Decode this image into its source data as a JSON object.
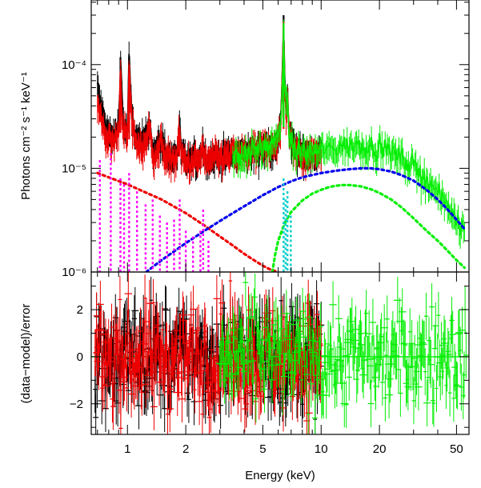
{
  "chart_data": [
    {
      "type": "line",
      "panel": "spectrum",
      "ylabel": "Photons cm⁻² s⁻¹ keV⁻¹",
      "xscale": "log",
      "yscale": "log",
      "xlim": [
        0.65,
        58
      ],
      "ylim": [
        1e-06,
        0.00042
      ],
      "ytick_values": [
        1e-06,
        1e-05,
        0.0001
      ],
      "ytick_labels": [
        "10⁻⁶",
        "10⁻⁵",
        "10⁻⁴"
      ],
      "series": [
        {
          "style": "data",
          "color": "#000000",
          "x": [
            0.7,
            0.75,
            0.8,
            0.85,
            0.9,
            0.92,
            0.95,
            1.0,
            1.02,
            1.05,
            1.1,
            1.15,
            1.2,
            1.3,
            1.35,
            1.4,
            1.5,
            1.6,
            1.7,
            1.8,
            1.85,
            1.9,
            2.0,
            2.1,
            2.2,
            2.3,
            2.4,
            2.45,
            2.5,
            2.7,
            3.0,
            3.3,
            3.6,
            4.0,
            4.5,
            5.0,
            5.5,
            6.0,
            6.2,
            6.4,
            6.5,
            6.6,
            6.7,
            6.8,
            7.0,
            7.5,
            8.0,
            9.0,
            10.0
          ],
          "y": [
            6e-05,
            3.2e-05,
            2.2e-05,
            2e-05,
            2.6e-05,
            0.000118,
            2.8e-05,
            2.2e-05,
            0.00012,
            3.5e-05,
            2e-05,
            1.9e-05,
            1.8e-05,
            2.8e-05,
            1.6e-05,
            1.5e-05,
            2e-05,
            1.4e-05,
            1.3e-05,
            1.4e-05,
            2.6e-05,
            1.4e-05,
            1.25e-05,
            1.2e-05,
            1.3e-05,
            1.25e-05,
            1.4e-05,
            1.9e-05,
            1.3e-05,
            1.3e-05,
            1.35e-05,
            1.4e-05,
            1.4e-05,
            1.45e-05,
            1.5e-05,
            1.6e-05,
            1.7e-05,
            1.9e-05,
            2.6e-05,
            0.0003,
            6e-05,
            3.5e-05,
            6e-05,
            2.5e-05,
            1.8e-05,
            1.5e-05,
            1.4e-05,
            1.45e-05,
            1.5e-05
          ]
        },
        {
          "style": "data",
          "color": "#ee0000",
          "x": [
            0.7,
            0.75,
            0.8,
            0.85,
            0.9,
            0.92,
            0.95,
            1.0,
            1.02,
            1.05,
            1.1,
            1.15,
            1.2,
            1.3,
            1.35,
            1.4,
            1.5,
            1.6,
            1.7,
            1.8,
            1.85,
            1.9,
            2.0,
            2.1,
            2.2,
            2.3,
            2.4,
            2.45,
            2.5,
            2.7,
            3.0,
            3.3,
            3.6,
            4.0,
            4.5,
            5.0,
            5.5,
            6.0,
            6.2,
            6.4,
            6.5,
            6.6,
            6.7,
            6.8,
            7.0,
            7.5,
            8.0,
            9.0,
            10.0
          ],
          "y": [
            4e-05,
            2.5e-05,
            1.9e-05,
            1.8e-05,
            2.2e-05,
            8.5e-05,
            2.4e-05,
            1.9e-05,
            0.0001,
            3e-05,
            1.8e-05,
            1.7e-05,
            1.6e-05,
            2.4e-05,
            1.5e-05,
            1.4e-05,
            1.8e-05,
            1.3e-05,
            1.25e-05,
            1.3e-05,
            2.3e-05,
            1.3e-05,
            1.2e-05,
            1.15e-05,
            1.2e-05,
            1.2e-05,
            1.3e-05,
            1.7e-05,
            1.2e-05,
            1.25e-05,
            1.3e-05,
            1.35e-05,
            1.4e-05,
            1.4e-05,
            1.5e-05,
            1.6e-05,
            1.7e-05,
            1.9e-05,
            2.4e-05,
            0.00026,
            5e-05,
            3.2e-05,
            5e-05,
            2.3e-05,
            1.7e-05,
            1.5e-05,
            1.4e-05,
            1.45e-05,
            1.5e-05
          ]
        },
        {
          "style": "data",
          "color": "#00ee00",
          "x": [
            3.5,
            4.0,
            4.5,
            5.0,
            5.5,
            6.0,
            6.2,
            6.4,
            6.5,
            6.6,
            6.7,
            6.8,
            7.0,
            7.5,
            8.0,
            9.0,
            10.0,
            11.0,
            12.0,
            13.0,
            14.0,
            15.0,
            16.0,
            17.0,
            18.0,
            19.0,
            20.0,
            22.0,
            24.0,
            26.0,
            28.0,
            30.0,
            33.0,
            36.0,
            40.0,
            45.0,
            50.0,
            55.0
          ],
          "y": [
            1.3e-05,
            1.4e-05,
            1.5e-05,
            1.6e-05,
            1.7e-05,
            1.9e-05,
            2.5e-05,
            0.00025,
            5e-05,
            3.3e-05,
            5e-05,
            2.4e-05,
            1.8e-05,
            1.5e-05,
            1.45e-05,
            1.45e-05,
            1.5e-05,
            1.55e-05,
            1.6e-05,
            1.63e-05,
            1.66e-05,
            1.68e-05,
            1.7e-05,
            1.7e-05,
            1.68e-05,
            1.65e-05,
            1.6e-05,
            1.5e-05,
            1.4e-05,
            1.28e-05,
            1.15e-05,
            1.05e-05,
            9e-06,
            7.5e-06,
            5.8e-06,
            4.3e-06,
            3.3e-06,
            2.7e-06
          ]
        },
        {
          "style": "dotted",
          "color": "#ee0000",
          "x": [
            0.7,
            1.0,
            1.5,
            2.0,
            2.5,
            3.0,
            3.5,
            4.0,
            4.5,
            5.0,
            5.5,
            6.0
          ],
          "y": [
            9e-06,
            7e-06,
            5e-06,
            3.7e-06,
            2.8e-06,
            2.2e-06,
            1.8e-06,
            1.5e-06,
            1.3e-06,
            1.15e-06,
            1.05e-06,
            1e-06
          ]
        },
        {
          "style": "dotted",
          "color": "#0000ee",
          "x": [
            1.25,
            1.5,
            2.0,
            2.5,
            3.0,
            3.5,
            4.0,
            5.0,
            6.0,
            7.0,
            8.0,
            10.0,
            12.0,
            14.0,
            16.0,
            18.0,
            20.0,
            23.0,
            26.0,
            30.0,
            35.0,
            40.0,
            45.0,
            50.0,
            55.0
          ],
          "y": [
            1e-06,
            1.3e-06,
            1.9e-06,
            2.5e-06,
            3.1e-06,
            3.7e-06,
            4.3e-06,
            5.5e-06,
            6.6e-06,
            7.5e-06,
            8.2e-06,
            9e-06,
            9.5e-06,
            9.8e-06,
            1e-05,
            1e-05,
            9.8e-06,
            9.3e-06,
            8.6e-06,
            7.6e-06,
            6.2e-06,
            5e-06,
            4e-06,
            3.2e-06,
            2.6e-06
          ]
        },
        {
          "style": "dotted",
          "color": "#00ee00",
          "x": [
            5.6,
            5.8,
            6.0,
            6.5,
            7.0,
            8.0,
            9.0,
            10.0,
            11.0,
            12.0,
            13.0,
            14.0,
            16.0,
            18.0,
            20.0,
            23.0,
            26.0,
            30.0,
            35.0,
            40.0,
            45.0,
            50.0,
            55.0
          ],
          "y": [
            1e-06,
            1.5e-06,
            2e-06,
            3e-06,
            3.8e-06,
            4.9e-06,
            5.7e-06,
            6.2e-06,
            6.6e-06,
            6.8e-06,
            6.9e-06,
            6.9e-06,
            6.7e-06,
            6.3e-06,
            5.8e-06,
            5e-06,
            4.2e-06,
            3.3e-06,
            2.5e-06,
            2e-06,
            1.6e-06,
            1.3e-06,
            1.1e-06
          ]
        },
        {
          "style": "lines",
          "color": "#ff00ff",
          "x": [
            0.72,
            0.82,
            0.92,
            0.96,
            1.02,
            1.12,
            1.24,
            1.35,
            1.47,
            1.6,
            1.74,
            1.86,
            2.0,
            2.18,
            2.38,
            2.46,
            2.62
          ],
          "y": [
            1.2e-05,
            1.4e-05,
            8e-06,
            7e-06,
            9e-06,
            6e-06,
            4.5e-06,
            5e-06,
            3.5e-06,
            3e-06,
            3.2e-06,
            5e-06,
            2.5e-06,
            2.2e-06,
            2.5e-06,
            4e-06,
            2e-06
          ]
        },
        {
          "style": "lines",
          "color": "#00cccc",
          "x": [
            6.4,
            6.55,
            6.7,
            6.97
          ],
          "y": [
            8e-06,
            5e-06,
            6e-06,
            3.5e-06
          ]
        }
      ]
    },
    {
      "type": "scatter",
      "panel": "residuals",
      "xlabel": "Energy (keV)",
      "ylabel": "(data−model)/error",
      "xscale": "log",
      "xlim": [
        0.65,
        58
      ],
      "ylim": [
        -3.3,
        3.6
      ],
      "ytick_labels": [
        "−2",
        "0",
        "2"
      ],
      "xtick_values": [
        1,
        2,
        5,
        10,
        20,
        50
      ],
      "xtick_labels": [
        "1",
        "2",
        "5",
        "10",
        "20",
        "50"
      ],
      "reference_line": {
        "y": 0,
        "color": "#00ee00"
      },
      "series": [
        {
          "color": "#000000",
          "x_range": [
            0.68,
            10
          ],
          "spread": 1.6
        },
        {
          "color": "#ee0000",
          "x_range": [
            0.68,
            10
          ],
          "spread": 1.6
        },
        {
          "color": "#00ee00",
          "x_range": [
            3,
            56
          ],
          "spread": 1.5
        }
      ]
    }
  ]
}
